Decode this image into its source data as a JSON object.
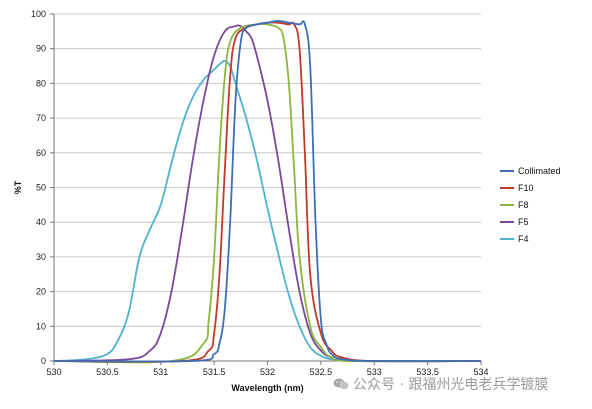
{
  "chart_data": {
    "type": "line",
    "title": "",
    "xlabel": "Wavelength (nm)",
    "ylabel": "%T",
    "xlim": [
      530,
      534
    ],
    "ylim": [
      0,
      100
    ],
    "xticks": [
      "530",
      "530.5",
      "531",
      "531.5",
      "532",
      "532.5",
      "533",
      "533.5",
      "534"
    ],
    "yticks": [
      "0",
      "10",
      "20",
      "30",
      "40",
      "50",
      "60",
      "70",
      "80",
      "90",
      "100"
    ],
    "grid": "horizontal",
    "legend_position": "right",
    "series": [
      {
        "name": "Collimated",
        "color": "#3d6fb6",
        "x": [
          530,
          531.3,
          531.5,
          531.55,
          531.6,
          531.65,
          531.7,
          531.75,
          531.8,
          531.9,
          532.0,
          532.1,
          532.2,
          532.3,
          532.35,
          532.4,
          532.45,
          532.5,
          532.55,
          532.6,
          532.7,
          533,
          534
        ],
        "y": [
          0,
          0,
          2,
          5,
          15,
          40,
          75,
          92,
          96,
          97,
          97.5,
          98,
          97.5,
          97,
          97,
          85,
          40,
          12,
          5,
          2,
          0.5,
          0,
          0
        ]
      },
      {
        "name": "F10",
        "color": "#c0392b",
        "x": [
          530,
          531.2,
          531.45,
          531.5,
          531.55,
          531.6,
          531.65,
          531.7,
          531.8,
          531.9,
          532.0,
          532.1,
          532.2,
          532.25,
          532.3,
          532.35,
          532.4,
          532.5,
          532.6,
          532.7,
          533,
          534
        ],
        "y": [
          0,
          0,
          3,
          8,
          25,
          55,
          82,
          93,
          96,
          97,
          97.5,
          97.5,
          97,
          97,
          90,
          60,
          25,
          8,
          3,
          1,
          0,
          0
        ]
      },
      {
        "name": "F8",
        "color": "#8db53f",
        "x": [
          530,
          531.1,
          531.4,
          531.45,
          531.5,
          531.55,
          531.6,
          531.65,
          531.75,
          531.9,
          532.0,
          532.1,
          532.15,
          532.2,
          532.25,
          532.3,
          532.4,
          532.5,
          532.6,
          532.8,
          534
        ],
        "y": [
          0,
          0,
          5,
          12,
          30,
          60,
          82,
          92,
          96,
          97,
          97,
          96,
          93,
          80,
          55,
          30,
          10,
          4,
          1,
          0,
          0
        ]
      },
      {
        "name": "F5",
        "color": "#7a4a9a",
        "x": [
          530,
          530.7,
          530.9,
          531.0,
          531.1,
          531.2,
          531.3,
          531.4,
          531.5,
          531.6,
          531.7,
          531.75,
          531.8,
          531.85,
          531.9,
          532.0,
          532.1,
          532.2,
          532.3,
          532.4,
          532.5,
          532.6,
          532.8,
          534
        ],
        "y": [
          0,
          0.5,
          3,
          8,
          20,
          38,
          58,
          75,
          88,
          95,
          96.5,
          96.5,
          95,
          93,
          88,
          75,
          58,
          38,
          20,
          8,
          3,
          1,
          0,
          0
        ]
      },
      {
        "name": "F4",
        "color": "#4fb3cf",
        "x": [
          530,
          530.3,
          530.5,
          530.6,
          530.7,
          530.8,
          530.9,
          531.0,
          531.1,
          531.2,
          531.3,
          531.4,
          531.5,
          531.55,
          531.6,
          531.65,
          531.7,
          531.8,
          531.9,
          532.0,
          532.1,
          532.2,
          532.3,
          532.4,
          532.5,
          532.6,
          532.8,
          533,
          534
        ],
        "y": [
          0,
          0.5,
          2,
          6,
          14,
          30,
          38,
          45,
          57,
          68,
          76,
          81,
          84,
          85.5,
          86.5,
          85,
          80,
          70,
          58,
          44,
          31,
          19,
          10,
          4,
          1.5,
          0.5,
          0,
          0,
          0
        ]
      }
    ]
  },
  "watermark": {
    "text": "公众号 · 跟福州光电老兵学镀膜",
    "icon": "wechat-icon"
  }
}
